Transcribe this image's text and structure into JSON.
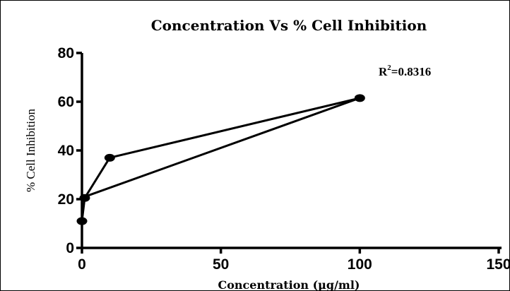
{
  "chart_data": {
    "type": "line",
    "title": "Concentration Vs % Cell Inhibition",
    "xlabel": "Concentration (µg/ml)",
    "ylabel": "% Cell Inhibition",
    "xlim": [
      0,
      150
    ],
    "ylim": [
      0,
      80
    ],
    "xticks": [
      0,
      50,
      100,
      150
    ],
    "yticks": [
      0,
      20,
      40,
      60,
      80
    ],
    "grid": false,
    "legend": "none",
    "annotation": {
      "base": "R",
      "sup": "2",
      "rest": "=0.8316"
    },
    "series": [
      {
        "x": [
          0,
          1,
          10,
          100
        ],
        "y": [
          11,
          20.5,
          37,
          61.5
        ]
      }
    ],
    "fit_line": {
      "x": [
        1,
        100
      ],
      "y": [
        21,
        61.5
      ]
    },
    "line_color": "#000000",
    "marker_color": "#000000"
  }
}
